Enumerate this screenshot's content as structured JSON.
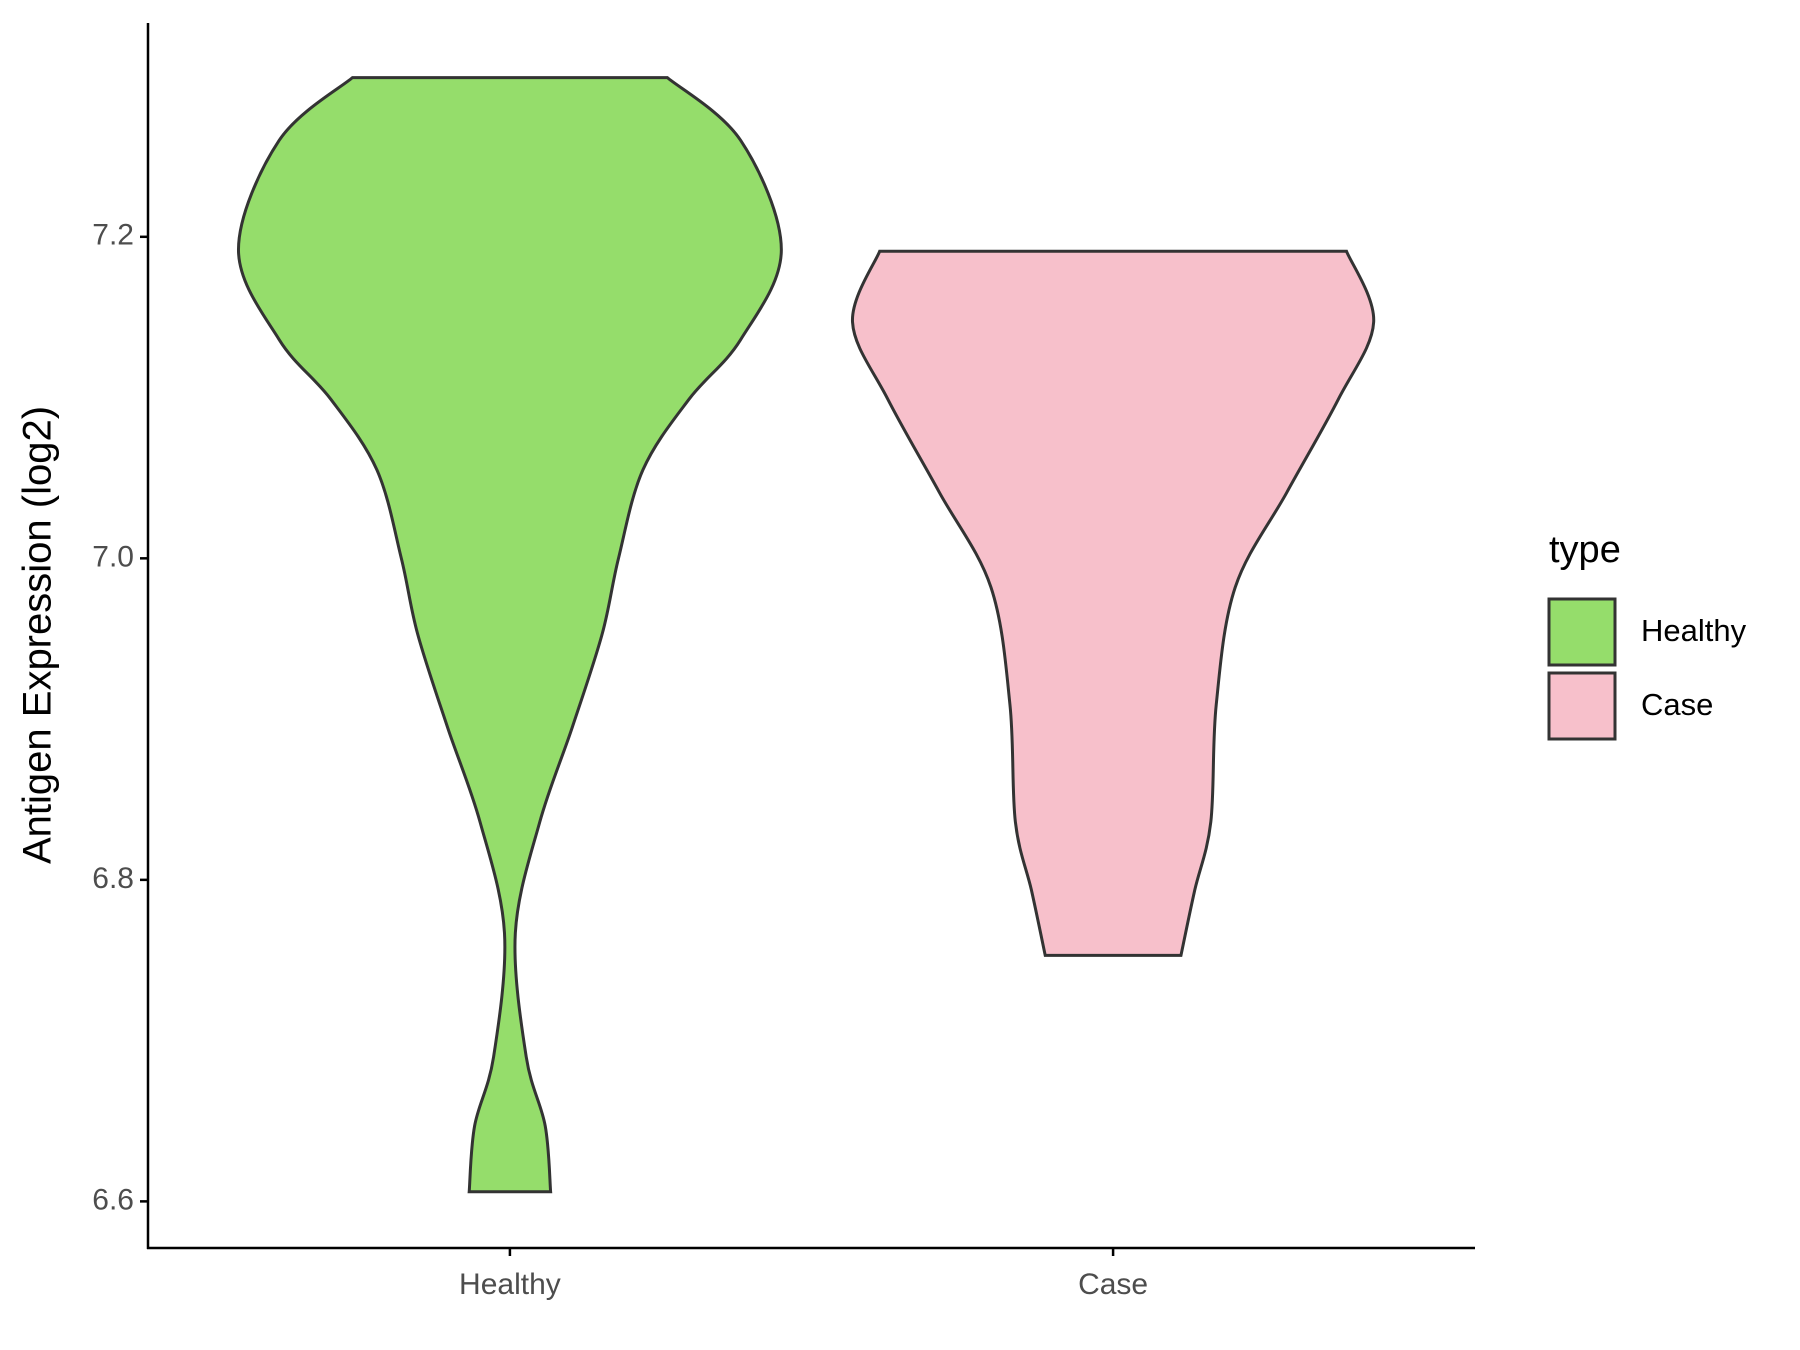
{
  "chart_data": {
    "type": "violin",
    "y_label": "Antigen Expression (log2)",
    "categories": [
      "Healthy",
      "Case"
    ],
    "series": [
      {
        "name": "Healthy",
        "color": "#95dd6b",
        "y": [
          7.299,
          7.26,
          7.192,
          7.136,
          7.099,
          7.055,
          7.0,
          6.953,
          6.895,
          6.836,
          6.767,
          6.69,
          6.647,
          6.606
        ],
        "density": [
          0.58,
          0.85,
          1.0,
          0.85,
          0.66,
          0.49,
          0.4,
          0.34,
          0.23,
          0.11,
          0.02,
          0.06,
          0.13,
          0.15
        ]
      },
      {
        "name": "Case",
        "color": "#f7c0cb",
        "y": [
          7.191,
          7.147,
          7.099,
          7.041,
          6.982,
          6.909,
          6.836,
          6.793,
          6.753
        ],
        "density": [
          0.86,
          0.96,
          0.83,
          0.64,
          0.45,
          0.38,
          0.36,
          0.3,
          0.25
        ]
      }
    ],
    "ylim": [
      6.571,
      7.333
    ],
    "yticks": [
      {
        "value": 6.6,
        "label": "6.6"
      },
      {
        "value": 6.8,
        "label": "6.8"
      },
      {
        "value": 7.0,
        "label": "7.0"
      },
      {
        "value": 7.2,
        "label": "7.2"
      }
    ],
    "legend": {
      "title": "type",
      "position": "right"
    }
  }
}
